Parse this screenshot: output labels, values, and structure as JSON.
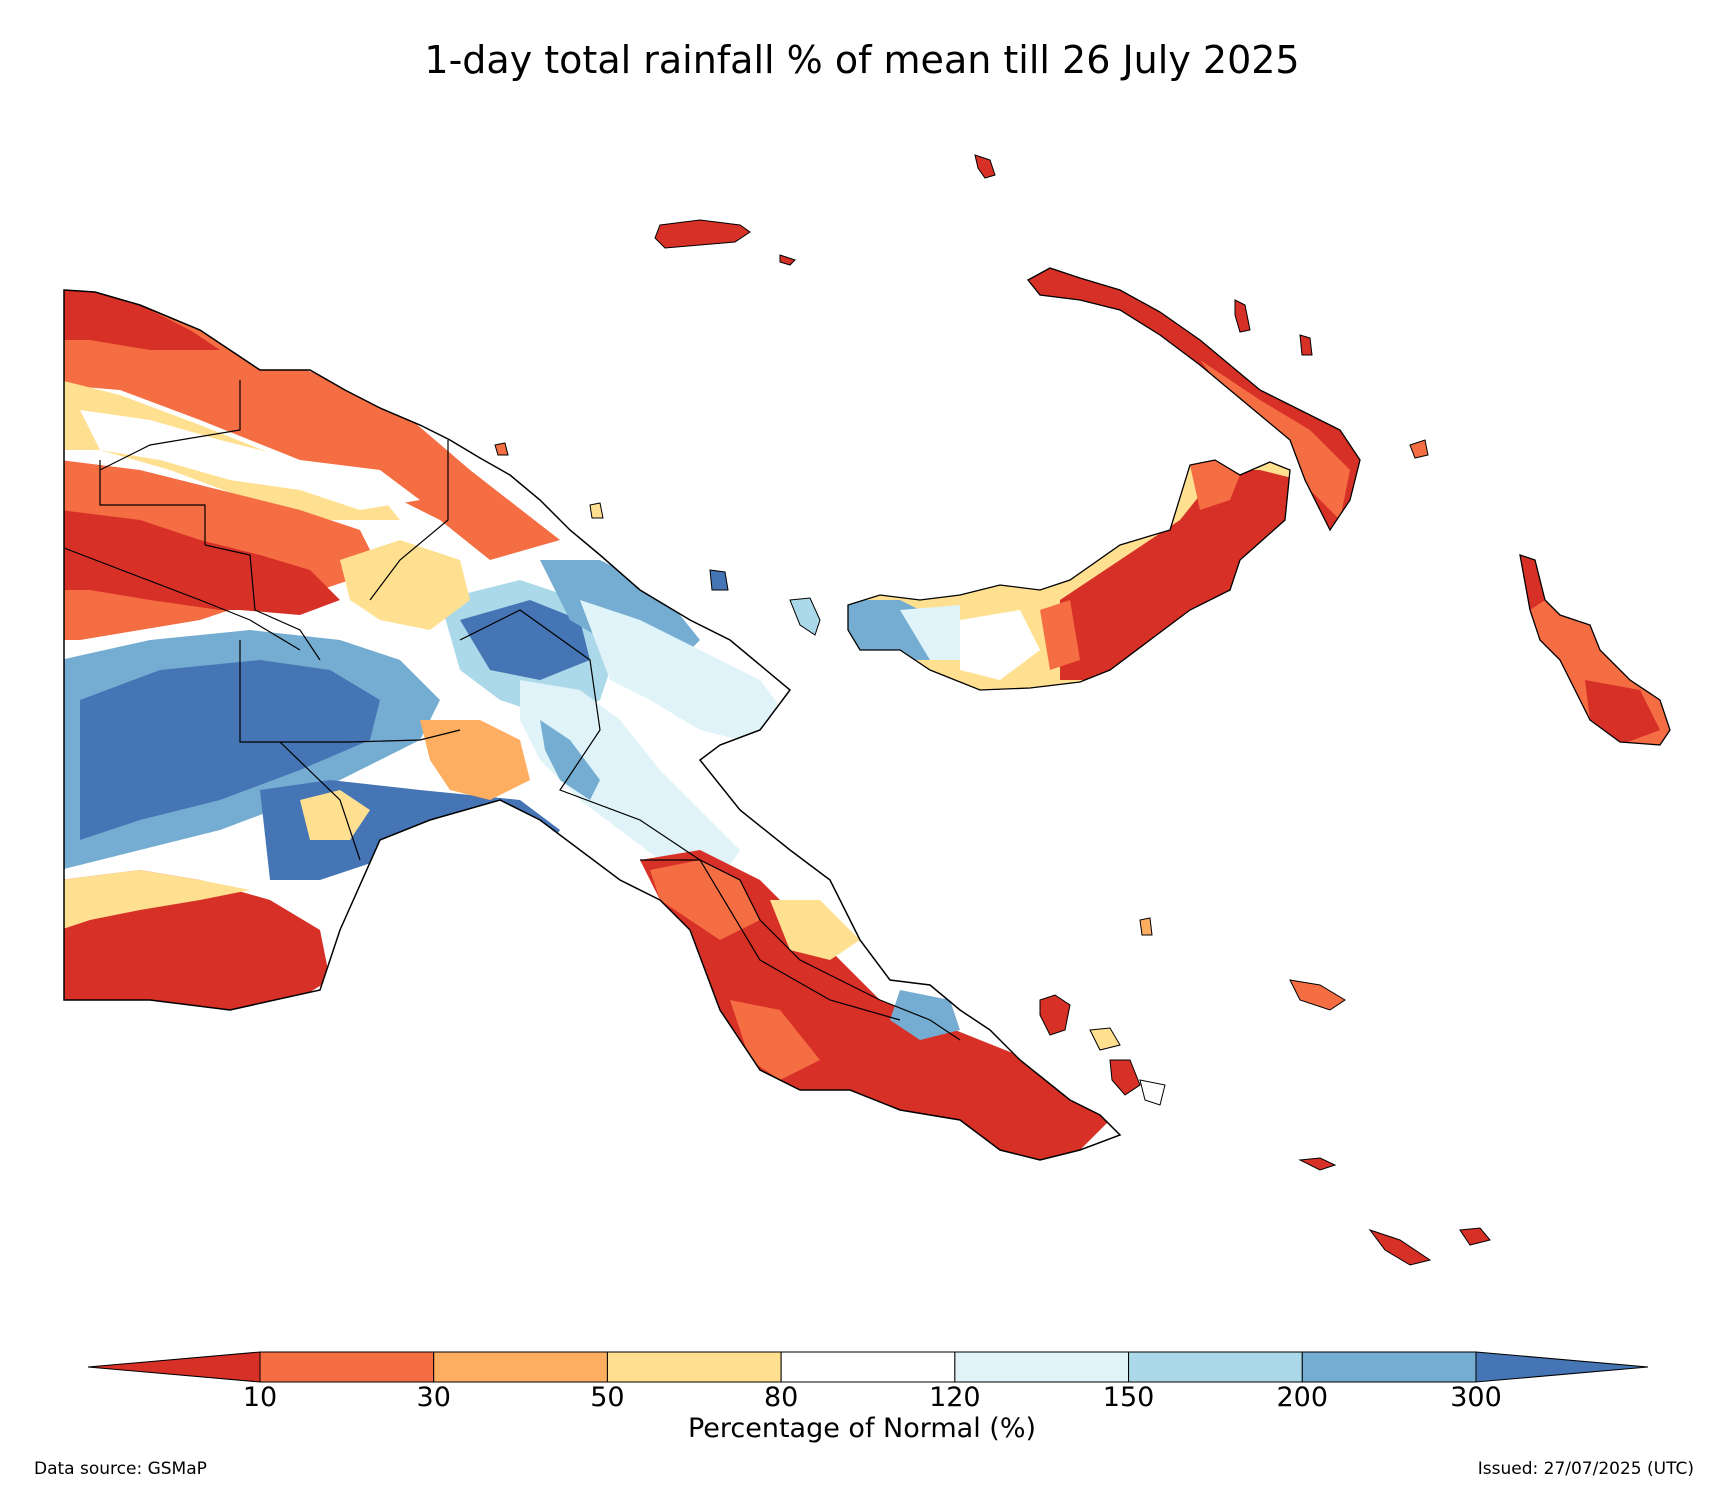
{
  "title": "1-day total rainfall % of mean till 26 July 2025",
  "legend": {
    "label": "Percentage of Normal (%)",
    "ticks": [
      "10",
      "30",
      "50",
      "80",
      "120",
      "150",
      "200",
      "300"
    ],
    "bins": [
      {
        "range": "<10",
        "color": "#d73027"
      },
      {
        "range": "10-30",
        "color": "#f46d43"
      },
      {
        "range": "30-50",
        "color": "#fdae61"
      },
      {
        "range": "50-80",
        "color": "#fee090"
      },
      {
        "range": "80-120",
        "color": "#ffffff"
      },
      {
        "range": "120-150",
        "color": "#e0f3f8"
      },
      {
        "range": "150-200",
        "color": "#abd9e9"
      },
      {
        "range": "200-300",
        "color": "#74add1"
      },
      {
        "range": ">300",
        "color": "#4575b4"
      }
    ]
  },
  "footer": {
    "source": "Data source: GSMaP",
    "issued": "Issued: 27/07/2025 (UTC)"
  }
}
